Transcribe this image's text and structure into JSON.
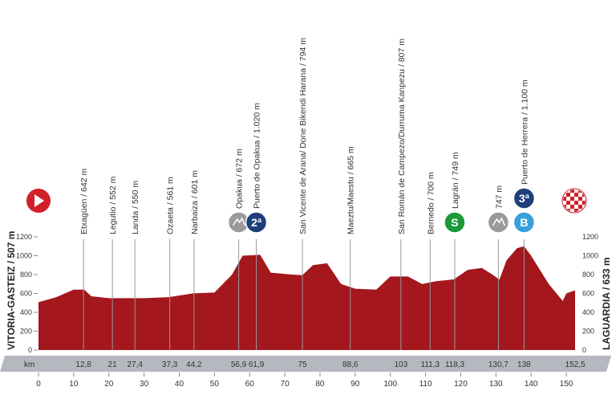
{
  "chart_data": {
    "type": "area",
    "color": "#a3171d",
    "start": "VITORIA-GASTEIZ / 507 m",
    "finish": "LAGUARDIA / 633 m",
    "x_unit": "km",
    "x": [
      0,
      5,
      10,
      13,
      15,
      20,
      30,
      37,
      44,
      50,
      55,
      58,
      63,
      66,
      72,
      75,
      78,
      82,
      86,
      90,
      96,
      100,
      105,
      109,
      113,
      118,
      122,
      126,
      129,
      131,
      133,
      136,
      138,
      140,
      145,
      149,
      150,
      152.5
    ],
    "values": [
      507,
      560,
      640,
      640,
      570,
      550,
      550,
      561,
      601,
      610,
      800,
      1000,
      1010,
      820,
      800,
      794,
      900,
      920,
      700,
      650,
      640,
      780,
      780,
      700,
      730,
      749,
      850,
      870,
      800,
      747,
      950,
      1080,
      1100,
      1000,
      700,
      520,
      600,
      633
    ],
    "xlim": [
      0,
      152.5
    ],
    "xticks": [
      0,
      10,
      20,
      30,
      40,
      50,
      60,
      70,
      80,
      90,
      100,
      110,
      120,
      130,
      140,
      150
    ],
    "ylim": [
      0,
      1200
    ],
    "yticks": [
      0,
      200,
      400,
      600,
      800,
      1000,
      1200
    ],
    "places": [
      {
        "name": "Etxagüen / 642 m",
        "km": {
          "value": 12.8,
          "label": "12,8"
        }
      },
      {
        "name": "Legutio / 552 m",
        "km": 21
      },
      {
        "name": "Landa / 550 m",
        "km": {
          "value": 27.4,
          "label": "27,4"
        }
      },
      {
        "name": "Ozaeta / 561 m",
        "km": {
          "value": 37.3,
          "label": "37,3"
        }
      },
      {
        "name": "Narbaiza / 601 m",
        "km": {
          "value": 44.2,
          "label": "44,2"
        }
      },
      {
        "name": "Opakua / 672 m",
        "km": {
          "value": 56.9,
          "label": "56,9"
        },
        "badges": [
          {
            "color": "#9a9a9a"
          }
        ]
      },
      {
        "name": "Puerto de Opakua / 1.020 m",
        "km": {
          "value": 61.9,
          "label": "61,9"
        },
        "badges": [
          {
            "text": "2ª",
            "color": "#1d3f7a"
          }
        ]
      },
      {
        "name": "San Vicente de Arana/ Done Bikendi Harana / 794 m",
        "km": 75
      },
      {
        "name": "Maeztu/Maestu / 665 m",
        "km": {
          "value": 88.6,
          "label": "88,6"
        }
      },
      {
        "name": "San Román de Campezo/Durruma Kanpezu / 807 m",
        "km": 103
      },
      {
        "name": "Bernedo / 700 m",
        "km": {
          "value": 111.3,
          "label": "111,3"
        }
      },
      {
        "name": "Lagrán / 749 m",
        "km": {
          "value": 118.3,
          "label": "118,3"
        },
        "badges": [
          {
            "text": "S",
            "color": "#1a9a3a"
          }
        ]
      },
      {
        "name": "747 m",
        "km": {
          "value": 130.7,
          "label": "130,7"
        },
        "badges": [
          {
            "color": "#9a9a9a"
          }
        ]
      },
      {
        "name": "Puerto de Herrera / 1.100 m",
        "km": 138,
        "badges": [
          {
            "text": "B",
            "color": "#3aa0dc"
          },
          {
            "text": "3ª",
            "color": "#1d3f7a"
          }
        ]
      }
    ],
    "end_km": {
      "value": 152.5,
      "label": "152,5"
    }
  }
}
